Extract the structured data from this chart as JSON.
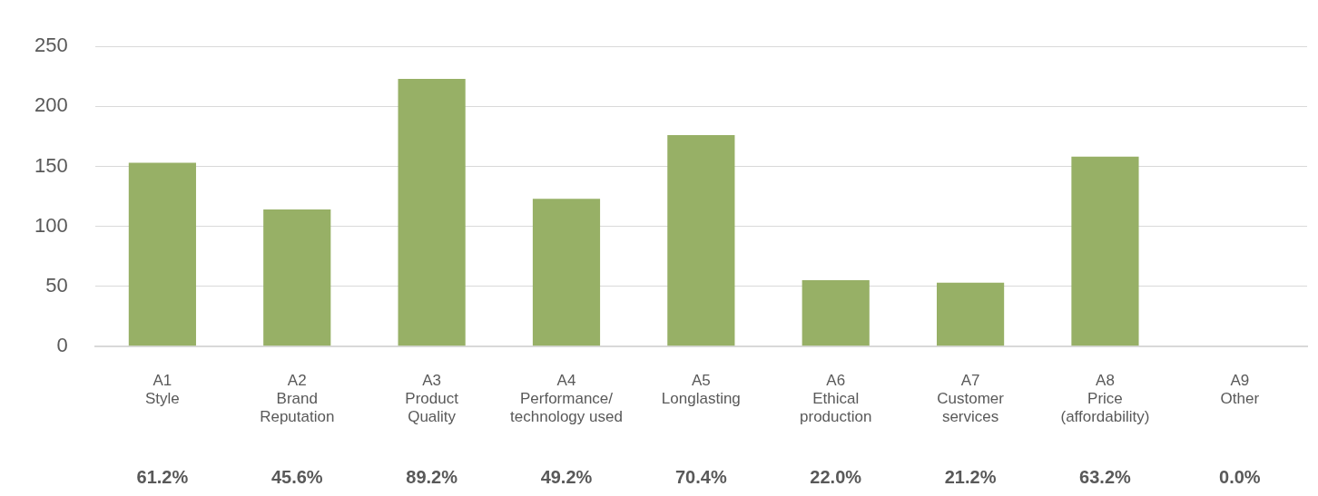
{
  "chart_data": {
    "type": "bar",
    "categories": [
      "A1\nStyle",
      "A2\nBrand\nReputation",
      "A3\nProduct\nQuality",
      "A4\nPerformance/\ntechnology used",
      "A5\nLonglasting",
      "A6\nEthical\nproduction",
      "A7\nCustomer\nservices",
      "A8\nPrice\n(affordability)",
      "A9\nOther"
    ],
    "values": [
      153,
      114,
      223,
      123,
      176,
      55,
      53,
      158,
      0
    ],
    "annotations": [
      "61.2%",
      "45.6%",
      "89.2%",
      "49.2%",
      "70.4%",
      "22.0%",
      "21.2%",
      "63.2%",
      "0.0%"
    ],
    "color": "#97b066",
    "ylim": [
      0,
      250
    ],
    "yticks": [
      0,
      50,
      100,
      150,
      200,
      250
    ],
    "grid": "y",
    "legend": false
  }
}
